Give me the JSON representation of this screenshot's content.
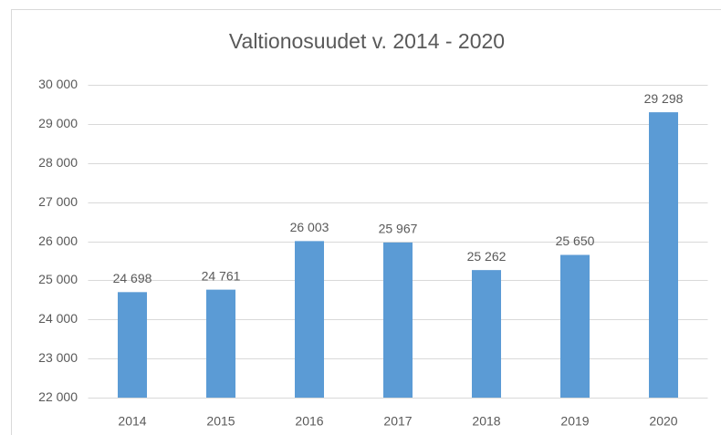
{
  "chart_data": {
    "type": "bar",
    "title": "Valtionosuudet v. 2014 - 2020",
    "categories": [
      "2014",
      "2015",
      "2016",
      "2017",
      "2018",
      "2019",
      "2020"
    ],
    "values": [
      24698,
      24761,
      26003,
      25967,
      25262,
      25650,
      29298
    ],
    "value_labels": [
      "24 698",
      "24 761",
      "26 003",
      "25 967",
      "25 262",
      "25 650",
      "29 298"
    ],
    "color": "#5b9bd5",
    "ylim": [
      22000,
      30000
    ],
    "yticks": [
      {
        "value": 22000,
        "label": "22 000"
      },
      {
        "value": 23000,
        "label": "23 000"
      },
      {
        "value": 24000,
        "label": "24 000"
      },
      {
        "value": 25000,
        "label": "25 000"
      },
      {
        "value": 26000,
        "label": "26 000"
      },
      {
        "value": 27000,
        "label": "27 000"
      },
      {
        "value": 28000,
        "label": "28 000"
      },
      {
        "value": 29000,
        "label": "29 000"
      },
      {
        "value": 30000,
        "label": "30 000"
      }
    ],
    "grid": true
  }
}
